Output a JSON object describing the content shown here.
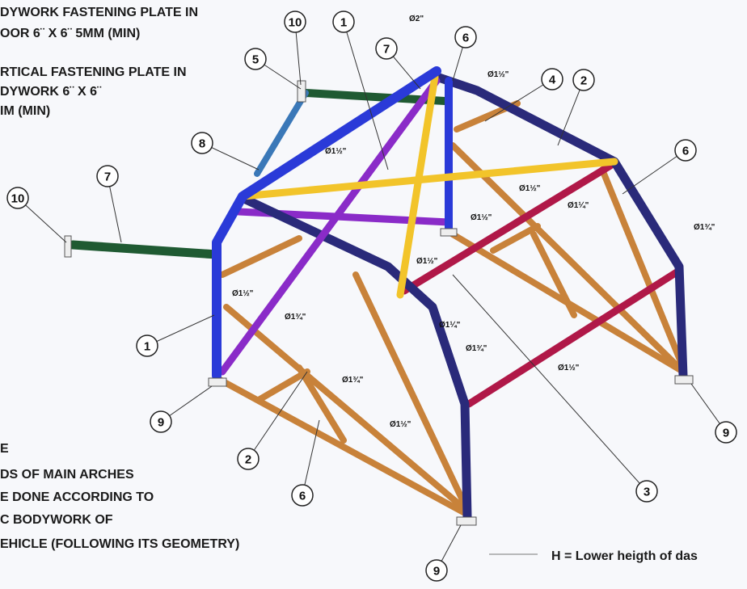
{
  "top_notes": [
    "DYWORK FASTENING PLATE IN",
    "OOR  6¨ X  6¨  5MM (MIN)",
    "RTICAL FASTENING PLATE IN",
    "DYWORK 6¨ X 6¨",
    "IM (MIN)"
  ],
  "bottom_notes": [
    "E",
    "DS OF MAIN ARCHES",
    "E DONE ACCORDING TO",
    "C BODYWORK OF",
    "EHICLE  (FOLLOWING ITS GEOMETRY)"
  ],
  "legend_note": "H = Lower heigth of das",
  "callouts": [
    "10",
    "1",
    "7",
    "6",
    "5",
    "4",
    "2",
    "8",
    "7",
    "6",
    "10",
    "1",
    "9",
    "2",
    "6",
    "3",
    "9",
    "9"
  ],
  "diameters": [
    "Ø2\"",
    "Ø1½\"",
    "Ø1½\"",
    "Ø1½\"",
    "Ø1¼\"",
    "Ø1½\"",
    "Ø1¾\"",
    "Ø1½\"",
    "Ø1½\"",
    "Ø1¾\"",
    "Ø1¼\"",
    "Ø1¾\"",
    "Ø1½\"",
    "Ø1¾\"",
    "Ø1½\""
  ]
}
